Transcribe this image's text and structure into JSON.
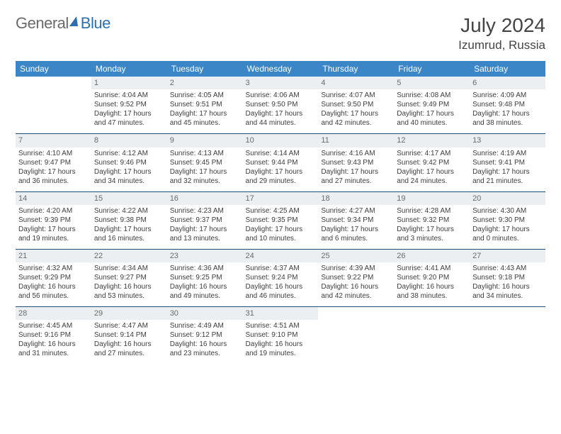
{
  "brand": {
    "part1": "General",
    "part2": "Blue"
  },
  "title": "July 2024",
  "location": "Izumrud, Russia",
  "colors": {
    "header_bg": "#3b86c6",
    "header_text": "#ffffff",
    "daynum_bg": "#eceff1",
    "daynum_text": "#6a6a6a",
    "cell_border": "#1f4e7a",
    "body_text": "#3d3d3d",
    "brand_gray": "#6a6a6a",
    "brand_blue": "#2f6fb0"
  },
  "typography": {
    "title_fontsize": 28,
    "location_fontsize": 17,
    "weekday_fontsize": 12,
    "daynum_fontsize": 11,
    "cell_fontsize": 10,
    "logo_fontsize": 22
  },
  "weekdays": [
    "Sunday",
    "Monday",
    "Tuesday",
    "Wednesday",
    "Thursday",
    "Friday",
    "Saturday"
  ],
  "weeks": [
    [
      {
        "n": "",
        "t": ""
      },
      {
        "n": "1",
        "t": "Sunrise: 4:04 AM\nSunset: 9:52 PM\nDaylight: 17 hours and 47 minutes."
      },
      {
        "n": "2",
        "t": "Sunrise: 4:05 AM\nSunset: 9:51 PM\nDaylight: 17 hours and 45 minutes."
      },
      {
        "n": "3",
        "t": "Sunrise: 4:06 AM\nSunset: 9:50 PM\nDaylight: 17 hours and 44 minutes."
      },
      {
        "n": "4",
        "t": "Sunrise: 4:07 AM\nSunset: 9:50 PM\nDaylight: 17 hours and 42 minutes."
      },
      {
        "n": "5",
        "t": "Sunrise: 4:08 AM\nSunset: 9:49 PM\nDaylight: 17 hours and 40 minutes."
      },
      {
        "n": "6",
        "t": "Sunrise: 4:09 AM\nSunset: 9:48 PM\nDaylight: 17 hours and 38 minutes."
      }
    ],
    [
      {
        "n": "7",
        "t": "Sunrise: 4:10 AM\nSunset: 9:47 PM\nDaylight: 17 hours and 36 minutes."
      },
      {
        "n": "8",
        "t": "Sunrise: 4:12 AM\nSunset: 9:46 PM\nDaylight: 17 hours and 34 minutes."
      },
      {
        "n": "9",
        "t": "Sunrise: 4:13 AM\nSunset: 9:45 PM\nDaylight: 17 hours and 32 minutes."
      },
      {
        "n": "10",
        "t": "Sunrise: 4:14 AM\nSunset: 9:44 PM\nDaylight: 17 hours and 29 minutes."
      },
      {
        "n": "11",
        "t": "Sunrise: 4:16 AM\nSunset: 9:43 PM\nDaylight: 17 hours and 27 minutes."
      },
      {
        "n": "12",
        "t": "Sunrise: 4:17 AM\nSunset: 9:42 PM\nDaylight: 17 hours and 24 minutes."
      },
      {
        "n": "13",
        "t": "Sunrise: 4:19 AM\nSunset: 9:41 PM\nDaylight: 17 hours and 21 minutes."
      }
    ],
    [
      {
        "n": "14",
        "t": "Sunrise: 4:20 AM\nSunset: 9:39 PM\nDaylight: 17 hours and 19 minutes."
      },
      {
        "n": "15",
        "t": "Sunrise: 4:22 AM\nSunset: 9:38 PM\nDaylight: 17 hours and 16 minutes."
      },
      {
        "n": "16",
        "t": "Sunrise: 4:23 AM\nSunset: 9:37 PM\nDaylight: 17 hours and 13 minutes."
      },
      {
        "n": "17",
        "t": "Sunrise: 4:25 AM\nSunset: 9:35 PM\nDaylight: 17 hours and 10 minutes."
      },
      {
        "n": "18",
        "t": "Sunrise: 4:27 AM\nSunset: 9:34 PM\nDaylight: 17 hours and 6 minutes."
      },
      {
        "n": "19",
        "t": "Sunrise: 4:28 AM\nSunset: 9:32 PM\nDaylight: 17 hours and 3 minutes."
      },
      {
        "n": "20",
        "t": "Sunrise: 4:30 AM\nSunset: 9:30 PM\nDaylight: 17 hours and 0 minutes."
      }
    ],
    [
      {
        "n": "21",
        "t": "Sunrise: 4:32 AM\nSunset: 9:29 PM\nDaylight: 16 hours and 56 minutes."
      },
      {
        "n": "22",
        "t": "Sunrise: 4:34 AM\nSunset: 9:27 PM\nDaylight: 16 hours and 53 minutes."
      },
      {
        "n": "23",
        "t": "Sunrise: 4:36 AM\nSunset: 9:25 PM\nDaylight: 16 hours and 49 minutes."
      },
      {
        "n": "24",
        "t": "Sunrise: 4:37 AM\nSunset: 9:24 PM\nDaylight: 16 hours and 46 minutes."
      },
      {
        "n": "25",
        "t": "Sunrise: 4:39 AM\nSunset: 9:22 PM\nDaylight: 16 hours and 42 minutes."
      },
      {
        "n": "26",
        "t": "Sunrise: 4:41 AM\nSunset: 9:20 PM\nDaylight: 16 hours and 38 minutes."
      },
      {
        "n": "27",
        "t": "Sunrise: 4:43 AM\nSunset: 9:18 PM\nDaylight: 16 hours and 34 minutes."
      }
    ],
    [
      {
        "n": "28",
        "t": "Sunrise: 4:45 AM\nSunset: 9:16 PM\nDaylight: 16 hours and 31 minutes."
      },
      {
        "n": "29",
        "t": "Sunrise: 4:47 AM\nSunset: 9:14 PM\nDaylight: 16 hours and 27 minutes."
      },
      {
        "n": "30",
        "t": "Sunrise: 4:49 AM\nSunset: 9:12 PM\nDaylight: 16 hours and 23 minutes."
      },
      {
        "n": "31",
        "t": "Sunrise: 4:51 AM\nSunset: 9:10 PM\nDaylight: 16 hours and 19 minutes."
      },
      {
        "n": "",
        "t": ""
      },
      {
        "n": "",
        "t": ""
      },
      {
        "n": "",
        "t": ""
      }
    ]
  ]
}
